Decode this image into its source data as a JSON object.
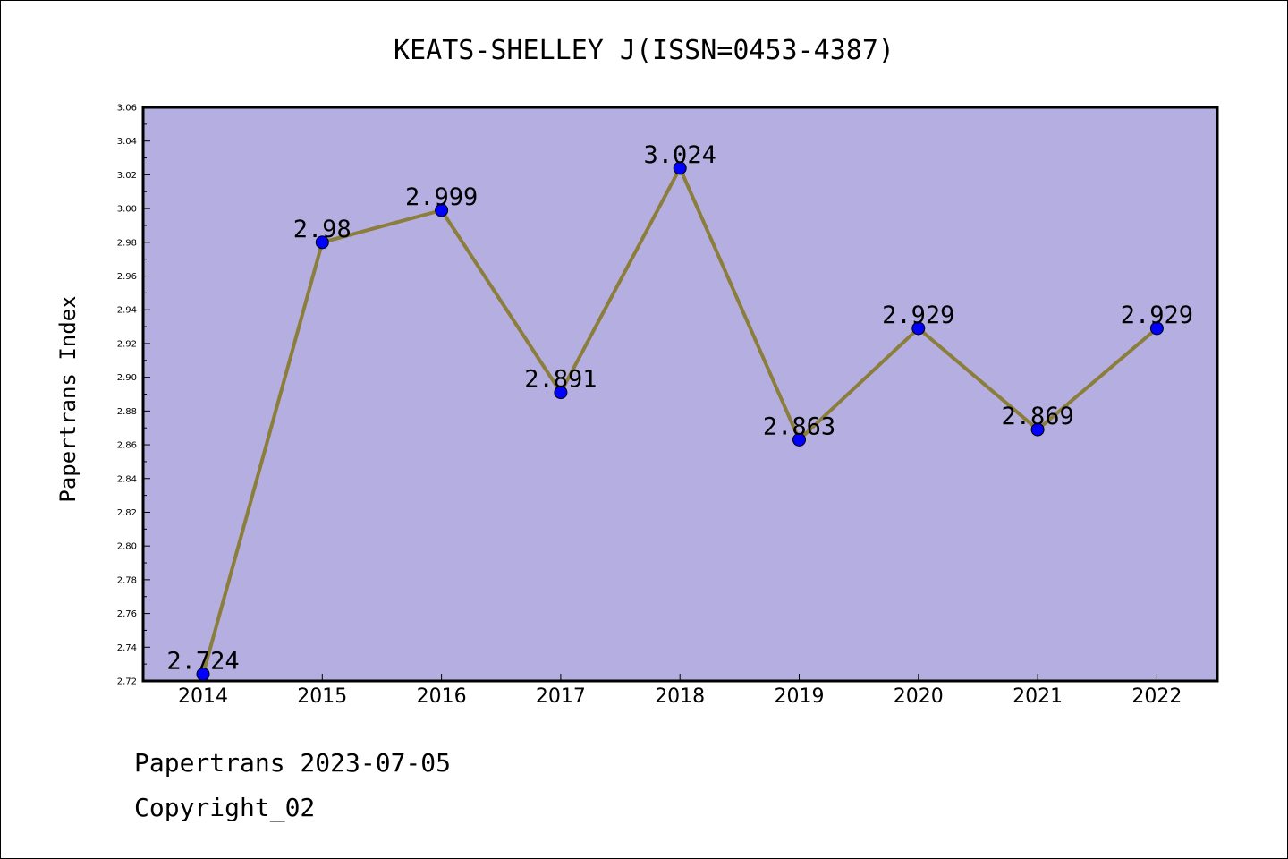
{
  "chart_data": {
    "type": "line",
    "title": "KEATS-SHELLEY J(ISSN=0453-4387)",
    "xlabel": "",
    "ylabel": "Papertrans Index",
    "categories": [
      "2014",
      "2015",
      "2016",
      "2017",
      "2018",
      "2019",
      "2020",
      "2021",
      "2022"
    ],
    "series": [
      {
        "values": [
          2.724,
          2.98,
          2.999,
          2.891,
          3.024,
          2.863,
          2.929,
          2.869,
          2.929
        ],
        "labels": [
          "2.724",
          "2.98",
          "2.999",
          "2.891",
          "3.024",
          "2.863",
          "2.929",
          "2.869",
          "2.929"
        ]
      }
    ],
    "ylim": [
      2.72,
      3.06
    ],
    "yticks": [
      "2.72",
      "2.74",
      "2.76",
      "2.78",
      "2.80",
      "2.82",
      "2.84",
      "2.86",
      "2.88",
      "2.90",
      "2.92",
      "2.94",
      "2.96",
      "2.98",
      "3.00",
      "3.02",
      "3.04",
      "3.06"
    ],
    "grid": false,
    "colors": {
      "plot_background": "#b5aee1",
      "line": "#8b7d3a",
      "marker": "#0000ff"
    }
  },
  "footer": {
    "line1": "Papertrans 2023-07-05",
    "line2": "Copyright_02"
  }
}
